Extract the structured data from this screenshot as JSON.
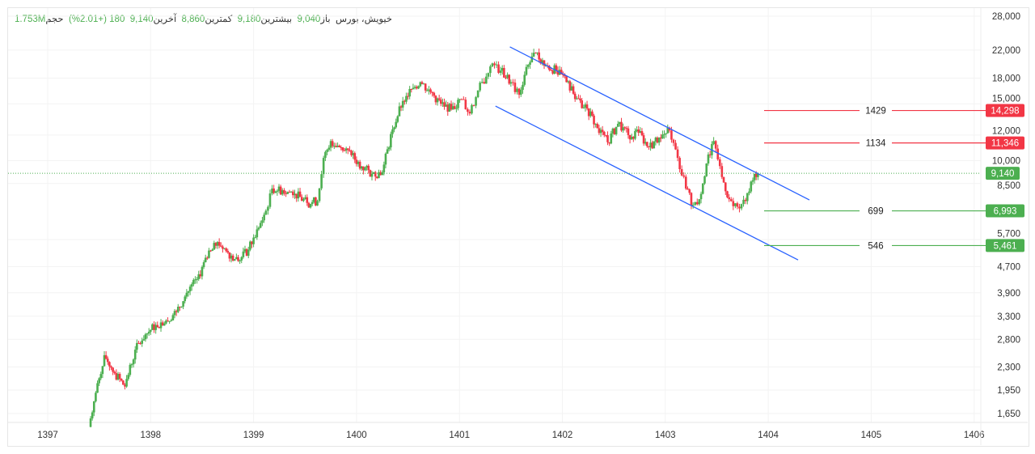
{
  "legend": {
    "exchange": "خیویش، بورس",
    "open_label": "باز",
    "open": "9,040",
    "high_label": "بیشترین",
    "high": "9,180",
    "low_label": "کمترین",
    "low": "8,860",
    "last_label": "آخرین",
    "last": "9,140",
    "change": "180 (+2.01%)",
    "volume_label": "حجم",
    "volume": "1.753M"
  },
  "chart_data": {
    "type": "candlestick",
    "title": "خیویش، بورس",
    "y_scale": "log",
    "ylim": [
      1550,
      30000
    ],
    "xlim": [
      1396.6,
      1406.3
    ],
    "y_ticks": [
      "28,000",
      "22,000",
      "18,000",
      "15,000",
      "12,000",
      "10,000",
      "8,500",
      "5,700",
      "4,700",
      "3,900",
      "3,300",
      "2,800",
      "2,300",
      "1,950",
      "1,650"
    ],
    "x_ticks": [
      "1397",
      "1398",
      "1399",
      "1400",
      "1401",
      "1402",
      "1403",
      "1404",
      "1405",
      "1406"
    ],
    "closes": [
      [
        1397.4,
        1500
      ],
      [
        1397.45,
        1800
      ],
      [
        1397.55,
        2500
      ],
      [
        1397.65,
        2200
      ],
      [
        1397.75,
        2000
      ],
      [
        1397.85,
        2600
      ],
      [
        1397.95,
        2900
      ],
      [
        1398.05,
        3100
      ],
      [
        1398.15,
        3200
      ],
      [
        1398.25,
        3400
      ],
      [
        1398.35,
        3900
      ],
      [
        1398.45,
        4300
      ],
      [
        1398.55,
        5000
      ],
      [
        1398.65,
        5600
      ],
      [
        1398.75,
        5200
      ],
      [
        1398.85,
        4900
      ],
      [
        1398.95,
        5300
      ],
      [
        1399.05,
        6200
      ],
      [
        1399.12,
        7000
      ],
      [
        1399.18,
        8200
      ],
      [
        1399.28,
        8100
      ],
      [
        1399.4,
        7900
      ],
      [
        1399.52,
        7400
      ],
      [
        1399.62,
        7500
      ],
      [
        1399.68,
        10200
      ],
      [
        1399.75,
        11500
      ],
      [
        1399.85,
        11000
      ],
      [
        1399.95,
        10400
      ],
      [
        1400.05,
        9600
      ],
      [
        1400.15,
        9100
      ],
      [
        1400.25,
        9200
      ],
      [
        1400.35,
        12500
      ],
      [
        1400.45,
        15300
      ],
      [
        1400.55,
        16800
      ],
      [
        1400.62,
        17500
      ],
      [
        1400.72,
        16300
      ],
      [
        1400.82,
        15000
      ],
      [
        1400.92,
        14400
      ],
      [
        1401.02,
        15500
      ],
      [
        1401.1,
        14000
      ],
      [
        1401.18,
        16500
      ],
      [
        1401.26,
        18200
      ],
      [
        1401.32,
        20000
      ],
      [
        1401.4,
        19000
      ],
      [
        1401.5,
        17500
      ],
      [
        1401.58,
        16000
      ],
      [
        1401.65,
        19500
      ],
      [
        1401.74,
        21500
      ],
      [
        1401.84,
        19700
      ],
      [
        1401.94,
        19000
      ],
      [
        1402.04,
        17500
      ],
      [
        1402.14,
        15600
      ],
      [
        1402.24,
        14500
      ],
      [
        1402.34,
        12600
      ],
      [
        1402.44,
        11400
      ],
      [
        1402.54,
        13000
      ],
      [
        1402.64,
        12000
      ],
      [
        1402.74,
        12200
      ],
      [
        1402.84,
        11000
      ],
      [
        1402.94,
        11800
      ],
      [
        1403.04,
        12400
      ],
      [
        1403.12,
        10200
      ],
      [
        1403.2,
        8200
      ],
      [
        1403.27,
        7300
      ],
      [
        1403.33,
        7600
      ],
      [
        1403.4,
        9800
      ],
      [
        1403.47,
        11500
      ],
      [
        1403.55,
        8900
      ],
      [
        1403.62,
        7600
      ],
      [
        1403.7,
        7200
      ],
      [
        1403.78,
        7500
      ],
      [
        1403.85,
        8700
      ],
      [
        1403.9,
        9140
      ]
    ],
    "channel": [
      {
        "from": [
          1401.49,
          22500
        ],
        "to": [
          1404.4,
          7560
        ]
      },
      {
        "from": [
          1401.35,
          14760
        ],
        "to": [
          1404.29,
          4930
        ]
      }
    ],
    "levels": [
      {
        "label": "1429",
        "value": 14298,
        "badge": "14,298",
        "color": "#f23645"
      },
      {
        "label": "1134",
        "value": 11346,
        "badge": "11,346",
        "color": "#f23645"
      },
      {
        "label": "699",
        "value": 6993,
        "badge": "6,993",
        "color": "#4caf50"
      },
      {
        "label": "546",
        "value": 5461,
        "badge": "5,461",
        "color": "#4caf50"
      }
    ],
    "last_price": {
      "value": 9140,
      "badge": "9,140",
      "color": "#4caf50"
    },
    "colors": {
      "up": "#4caf50",
      "down": "#f23645",
      "channel": "#2962ff"
    }
  }
}
